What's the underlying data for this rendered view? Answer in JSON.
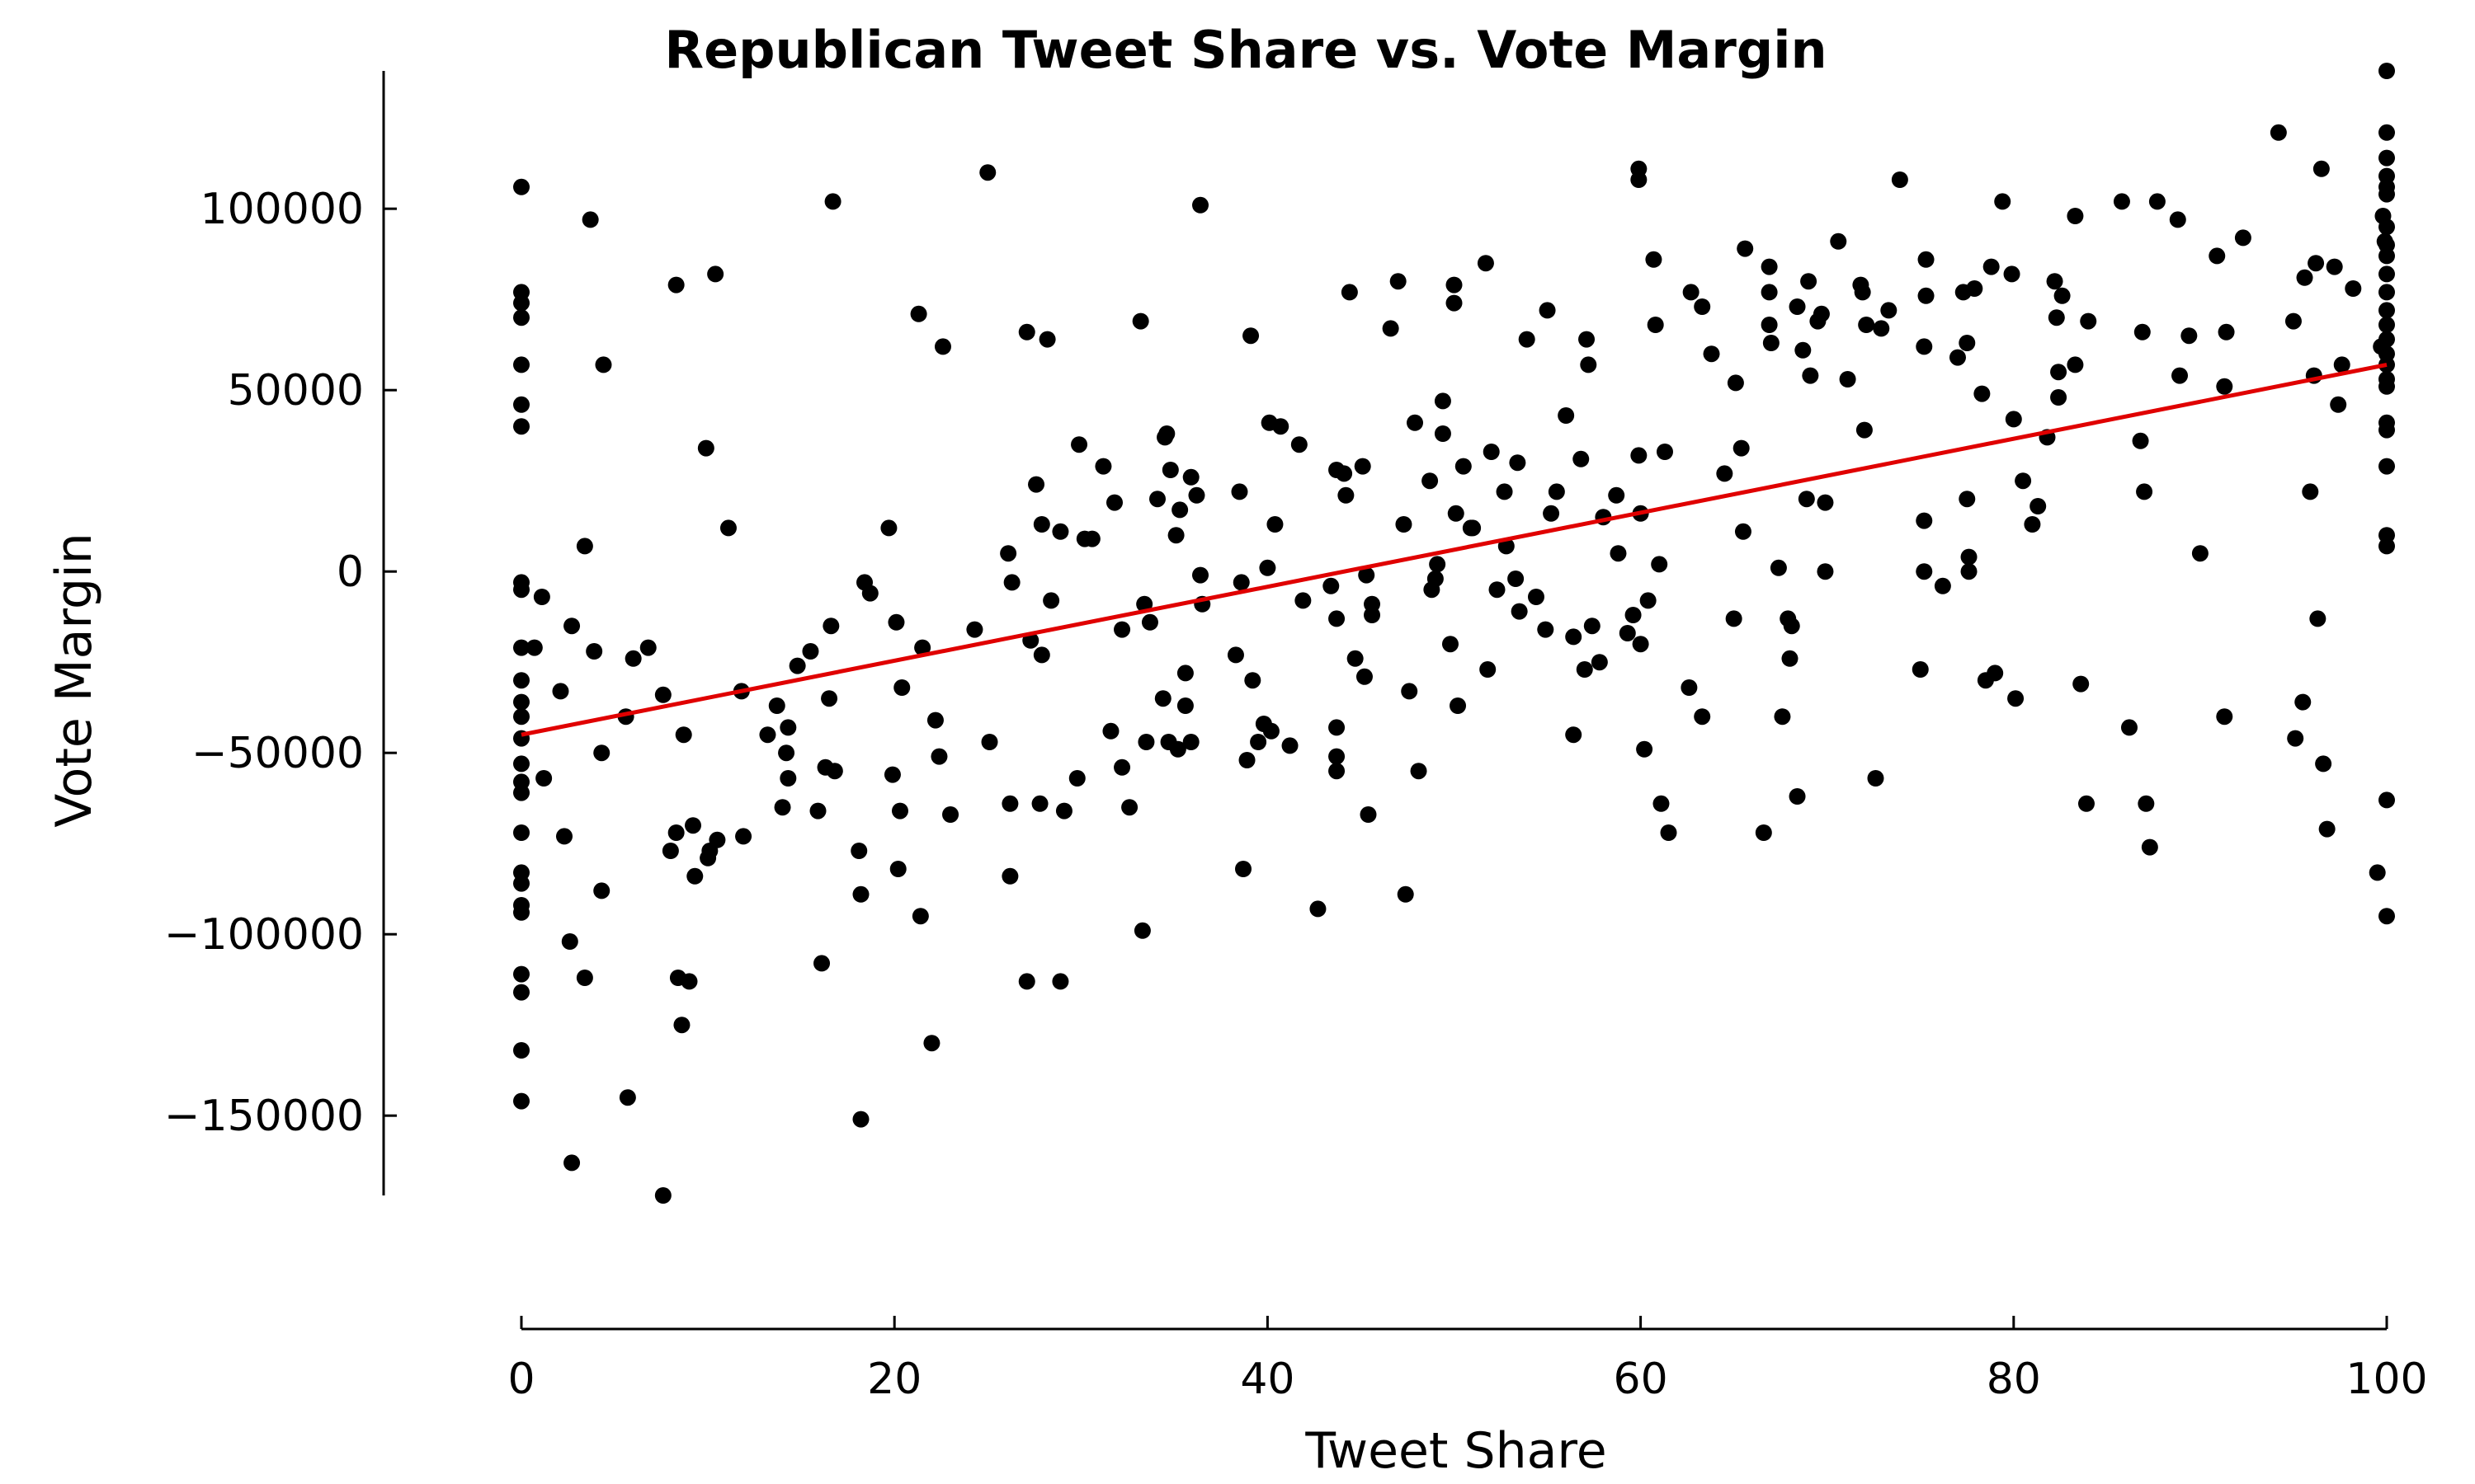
{
  "chart_data": {
    "type": "scatter",
    "title": "Republican Tweet Share vs. Vote Margin",
    "xlabel": "Tweet Share",
    "ylabel": "Vote Margin",
    "xlim": [
      0,
      100
    ],
    "ylim": [
      -172000,
      138000
    ],
    "x_ticks": [
      0,
      20,
      40,
      60,
      80,
      100
    ],
    "x_tick_labels": [
      "0",
      "20",
      "40",
      "60",
      "80",
      "100"
    ],
    "y_ticks": [
      -150000,
      -100000,
      -50000,
      0,
      50000,
      100000
    ],
    "y_tick_labels": [
      "−150000",
      "−100000",
      "−50000",
      "0",
      "50000",
      "100000"
    ],
    "grid": false,
    "legend": "none",
    "colors": {
      "points": "#000000",
      "trend_line": "#e00000"
    },
    "trend_line": {
      "x": [
        0,
        100
      ],
      "y": [
        -45000,
        57000
      ]
    },
    "points": [
      [
        0,
        106000
      ],
      [
        0,
        77000
      ],
      [
        0,
        74000
      ],
      [
        0,
        70000
      ],
      [
        0,
        57000
      ],
      [
        0,
        46000
      ],
      [
        0,
        40000
      ],
      [
        0,
        -3000
      ],
      [
        0,
        -5000
      ],
      [
        0,
        -21000
      ],
      [
        0,
        -30000
      ],
      [
        0,
        -36000
      ],
      [
        0,
        -40000
      ],
      [
        0,
        -46000
      ],
      [
        0,
        -53000
      ],
      [
        0,
        -58000
      ],
      [
        0,
        -61000
      ],
      [
        0,
        -72000
      ],
      [
        0,
        -83000
      ],
      [
        0,
        -86000
      ],
      [
        0,
        -92000
      ],
      [
        0,
        -94000
      ],
      [
        0,
        -111000
      ],
      [
        0,
        -116000
      ],
      [
        0,
        -132000
      ],
      [
        0,
        -146000
      ],
      [
        0.7,
        -21000
      ],
      [
        1.1,
        -7000
      ],
      [
        1.2,
        -57000
      ],
      [
        2.1,
        -33000
      ],
      [
        2.3,
        -73000
      ],
      [
        2.6,
        -102000
      ],
      [
        2.7,
        -15000
      ],
      [
        2.7,
        -163000
      ],
      [
        3.4,
        7000
      ],
      [
        3.4,
        -112000
      ],
      [
        3.7,
        97000
      ],
      [
        3.9,
        -22000
      ],
      [
        4.3,
        -50000
      ],
      [
        4.3,
        -88000
      ],
      [
        4.4,
        57000
      ],
      [
        5.7,
        -145000
      ],
      [
        5.6,
        -40000
      ],
      [
        6.0,
        -24000
      ],
      [
        6.8,
        -21000
      ],
      [
        7.6,
        -34000
      ],
      [
        7.6,
        -172000
      ],
      [
        8.0,
        -77000
      ],
      [
        8.3,
        79000
      ],
      [
        8.3,
        -72000
      ],
      [
        8.4,
        -112000
      ],
      [
        8.6,
        -125000
      ],
      [
        8.7,
        -45000
      ],
      [
        9.0,
        -113000
      ],
      [
        9.2,
        -70000
      ],
      [
        9.3,
        -84000
      ],
      [
        9.9,
        34000
      ],
      [
        10.0,
        -79000
      ],
      [
        10.1,
        -77000
      ],
      [
        10.4,
        82000
      ],
      [
        10.5,
        -74000
      ],
      [
        11.1,
        12000
      ],
      [
        11.8,
        -33000
      ],
      [
        11.9,
        -73000
      ],
      [
        13.2,
        -45000
      ],
      [
        13.7,
        -37000
      ],
      [
        14.0,
        -65000
      ],
      [
        14.2,
        -50000
      ],
      [
        14.3,
        -43000
      ],
      [
        14.3,
        -57000
      ],
      [
        14.8,
        -26000
      ],
      [
        15.5,
        -22000
      ],
      [
        15.9,
        -66000
      ],
      [
        16.1,
        -108000
      ],
      [
        16.3,
        -54000
      ],
      [
        16.5,
        -35000
      ],
      [
        16.6,
        -15000
      ],
      [
        16.7,
        102000
      ],
      [
        16.8,
        -55000
      ],
      [
        18.1,
        -77000
      ],
      [
        18.2,
        -89000
      ],
      [
        18.2,
        -151000
      ],
      [
        18.4,
        -3000
      ],
      [
        18.7,
        -6000
      ],
      [
        19.7,
        12000
      ],
      [
        19.9,
        -56000
      ],
      [
        20.1,
        -14000
      ],
      [
        20.2,
        -82000
      ],
      [
        20.3,
        -66000
      ],
      [
        20.4,
        -32000
      ],
      [
        21.3,
        71000
      ],
      [
        21.4,
        -95000
      ],
      [
        21.5,
        -21000
      ],
      [
        22.0,
        -130000
      ],
      [
        22.2,
        -41000
      ],
      [
        22.4,
        -51000
      ],
      [
        22.6,
        62000
      ],
      [
        23.0,
        -67000
      ],
      [
        24.3,
        -16000
      ],
      [
        25.0,
        110000
      ],
      [
        25.1,
        -47000
      ],
      [
        26.1,
        5000
      ],
      [
        26.2,
        -64000
      ],
      [
        26.2,
        -84000
      ],
      [
        26.3,
        -3000
      ],
      [
        27.1,
        66000
      ],
      [
        27.1,
        -113000
      ],
      [
        27.3,
        -19000
      ],
      [
        27.6,
        24000
      ],
      [
        27.8,
        -64000
      ],
      [
        27.9,
        13000
      ],
      [
        27.9,
        -23000
      ],
      [
        28.2,
        64000
      ],
      [
        28.4,
        -8000
      ],
      [
        28.9,
        11000
      ],
      [
        28.9,
        -113000
      ],
      [
        29.1,
        -66000
      ],
      [
        29.8,
        -57000
      ],
      [
        29.9,
        35000
      ],
      [
        30.2,
        9000
      ],
      [
        30.6,
        9000
      ],
      [
        31.2,
        29000
      ],
      [
        31.6,
        -44000
      ],
      [
        31.8,
        19000
      ],
      [
        32.2,
        -16000
      ],
      [
        32.2,
        -54000
      ],
      [
        32.6,
        -65000
      ],
      [
        33.2,
        69000
      ],
      [
        33.3,
        -99000
      ],
      [
        33.4,
        -9000
      ],
      [
        33.5,
        -47000
      ],
      [
        33.7,
        -14000
      ],
      [
        34.1,
        20000
      ],
      [
        34.4,
        -35000
      ],
      [
        34.5,
        37000
      ],
      [
        34.6,
        38000
      ],
      [
        34.7,
        -47000
      ],
      [
        34.8,
        28000
      ],
      [
        35.1,
        10000
      ],
      [
        35.2,
        -49000
      ],
      [
        35.3,
        17000
      ],
      [
        35.6,
        -28000
      ],
      [
        35.6,
        -37000
      ],
      [
        35.9,
        -47000
      ],
      [
        35.9,
        26000
      ],
      [
        36.2,
        21000
      ],
      [
        36.4,
        101000
      ],
      [
        36.4,
        -1000
      ],
      [
        36.5,
        -9000
      ],
      [
        38.3,
        -23000
      ],
      [
        38.5,
        22000
      ],
      [
        38.6,
        -3000
      ],
      [
        38.7,
        -82000
      ],
      [
        38.9,
        -52000
      ],
      [
        39.1,
        65000
      ],
      [
        39.2,
        -30000
      ],
      [
        39.5,
        -47000
      ],
      [
        39.8,
        -42000
      ],
      [
        40.1,
        41000
      ],
      [
        40.0,
        1000
      ],
      [
        40.2,
        -44000
      ],
      [
        40.4,
        13000
      ],
      [
        40.7,
        40000
      ],
      [
        41.2,
        -48000
      ],
      [
        41.7,
        35000
      ],
      [
        41.9,
        -8000
      ],
      [
        42.7,
        -93000
      ],
      [
        43.4,
        -4000
      ],
      [
        43.7,
        28000
      ],
      [
        43.7,
        -13000
      ],
      [
        43.7,
        -43000
      ],
      [
        43.7,
        -51000
      ],
      [
        43.7,
        -55000
      ],
      [
        44.1,
        27000
      ],
      [
        44.2,
        21000
      ],
      [
        44.4,
        77000
      ],
      [
        44.7,
        -24000
      ],
      [
        45.1,
        29000
      ],
      [
        45.2,
        -29000
      ],
      [
        45.3,
        -1000
      ],
      [
        45.4,
        -67000
      ],
      [
        45.6,
        -9000
      ],
      [
        45.6,
        -12000
      ],
      [
        46.6,
        67000
      ],
      [
        47.0,
        80000
      ],
      [
        47.3,
        13000
      ],
      [
        47.4,
        -89000
      ],
      [
        47.6,
        -33000
      ],
      [
        47.9,
        41000
      ],
      [
        48.1,
        -55000
      ],
      [
        48.7,
        25000
      ],
      [
        48.8,
        -5000
      ],
      [
        49.0,
        -2000
      ],
      [
        49.1,
        2000
      ],
      [
        49.4,
        47000
      ],
      [
        49.4,
        38000
      ],
      [
        49.8,
        -20000
      ],
      [
        50.0,
        79000
      ],
      [
        50.0,
        74000
      ],
      [
        50.1,
        16000
      ],
      [
        50.2,
        -37000
      ],
      [
        50.5,
        29000
      ],
      [
        50.9,
        12000
      ],
      [
        51.0,
        12000
      ],
      [
        51.7,
        85000
      ],
      [
        51.8,
        -27000
      ],
      [
        52.0,
        33000
      ],
      [
        52.3,
        -5000
      ],
      [
        52.8,
        7000
      ],
      [
        52.7,
        22000
      ],
      [
        53.3,
        -2000
      ],
      [
        53.4,
        30000
      ],
      [
        53.5,
        -11000
      ],
      [
        53.9,
        64000
      ],
      [
        54.4,
        -7000
      ],
      [
        54.9,
        -16000
      ],
      [
        55.0,
        72000
      ],
      [
        55.2,
        16000
      ],
      [
        55.5,
        22000
      ],
      [
        56.0,
        43000
      ],
      [
        56.4,
        -45000
      ],
      [
        56.4,
        -18000
      ],
      [
        56.8,
        31000
      ],
      [
        57.0,
        -27000
      ],
      [
        57.1,
        64000
      ],
      [
        57.2,
        57000
      ],
      [
        57.4,
        -15000
      ],
      [
        57.8,
        -25000
      ],
      [
        58.0,
        15000
      ],
      [
        58.7,
        21000
      ],
      [
        58.8,
        5000
      ],
      [
        59.3,
        -17000
      ],
      [
        59.6,
        -12000
      ],
      [
        59.9,
        111000
      ],
      [
        59.9,
        108000
      ],
      [
        59.9,
        32000
      ],
      [
        60.0,
        16000
      ],
      [
        60.0,
        -20000
      ],
      [
        60.2,
        -49000
      ],
      [
        60.4,
        -8000
      ],
      [
        60.7,
        86000
      ],
      [
        60.8,
        68000
      ],
      [
        61.0,
        2000
      ],
      [
        61.1,
        -64000
      ],
      [
        61.3,
        33000
      ],
      [
        61.5,
        -72000
      ],
      [
        62.6,
        -32000
      ],
      [
        62.7,
        77000
      ],
      [
        63.3,
        -40000
      ],
      [
        63.3,
        73000
      ],
      [
        63.8,
        60000
      ],
      [
        64.5,
        27000
      ],
      [
        65.0,
        -13000
      ],
      [
        65.1,
        52000
      ],
      [
        65.4,
        34000
      ],
      [
        65.5,
        11000
      ],
      [
        65.6,
        89000
      ],
      [
        66.6,
        -72000
      ],
      [
        66.9,
        84000
      ],
      [
        66.9,
        77000
      ],
      [
        66.9,
        68000
      ],
      [
        67.0,
        63000
      ],
      [
        67.4,
        1000
      ],
      [
        67.6,
        -40000
      ],
      [
        67.9,
        -13000
      ],
      [
        68.0,
        -24000
      ],
      [
        68.1,
        -15000
      ],
      [
        68.4,
        73000
      ],
      [
        68.4,
        -62000
      ],
      [
        68.7,
        61000
      ],
      [
        68.9,
        20000
      ],
      [
        69.0,
        80000
      ],
      [
        69.1,
        54000
      ],
      [
        69.5,
        69000
      ],
      [
        69.7,
        71000
      ],
      [
        69.9,
        19000
      ],
      [
        69.9,
        0
      ],
      [
        70.6,
        91000
      ],
      [
        71.1,
        53000
      ],
      [
        71.8,
        79000
      ],
      [
        71.9,
        77000
      ],
      [
        72.0,
        39000
      ],
      [
        72.1,
        68000
      ],
      [
        72.6,
        -57000
      ],
      [
        72.9,
        67000
      ],
      [
        73.3,
        72000
      ],
      [
        73.9,
        108000
      ],
      [
        75.0,
        -27000
      ],
      [
        75.2,
        14000
      ],
      [
        75.2,
        0
      ],
      [
        75.2,
        62000
      ],
      [
        75.3,
        86000
      ],
      [
        75.3,
        76000
      ],
      [
        76.2,
        -4000
      ],
      [
        77.0,
        59000
      ],
      [
        77.3,
        77000
      ],
      [
        77.5,
        63000
      ],
      [
        77.5,
        20000
      ],
      [
        77.6,
        4000
      ],
      [
        77.6,
        0
      ],
      [
        77.9,
        78000
      ],
      [
        78.3,
        49000
      ],
      [
        78.5,
        -30000
      ],
      [
        78.8,
        84000
      ],
      [
        79.0,
        -28000
      ],
      [
        79.4,
        102000
      ],
      [
        79.9,
        82000
      ],
      [
        80.0,
        42000
      ],
      [
        80.1,
        -35000
      ],
      [
        80.5,
        25000
      ],
      [
        81.0,
        13000
      ],
      [
        81.3,
        18000
      ],
      [
        81.8,
        37000
      ],
      [
        82.2,
        80000
      ],
      [
        82.3,
        70000
      ],
      [
        82.4,
        48000
      ],
      [
        82.4,
        55000
      ],
      [
        82.6,
        76000
      ],
      [
        83.3,
        98000
      ],
      [
        83.3,
        57000
      ],
      [
        83.6,
        -31000
      ],
      [
        83.9,
        -64000
      ],
      [
        84.0,
        69000
      ],
      [
        85.8,
        102000
      ],
      [
        86.2,
        -43000
      ],
      [
        86.8,
        36000
      ],
      [
        86.9,
        66000
      ],
      [
        87.0,
        22000
      ],
      [
        87.1,
        -64000
      ],
      [
        87.3,
        -76000
      ],
      [
        87.7,
        102000
      ],
      [
        88.8,
        97000
      ],
      [
        88.9,
        54000
      ],
      [
        89.4,
        65000
      ],
      [
        90.0,
        5000
      ],
      [
        90.9,
        87000
      ],
      [
        91.3,
        51000
      ],
      [
        91.3,
        -40000
      ],
      [
        91.4,
        66000
      ],
      [
        92.3,
        92000
      ],
      [
        94.2,
        121000
      ],
      [
        95.0,
        69000
      ],
      [
        95.1,
        -46000
      ],
      [
        95.5,
        -36000
      ],
      [
        95.6,
        81000
      ],
      [
        95.9,
        22000
      ],
      [
        96.1,
        54000
      ],
      [
        96.2,
        85000
      ],
      [
        96.3,
        -13000
      ],
      [
        96.5,
        111000
      ],
      [
        96.6,
        -53000
      ],
      [
        96.8,
        -71000
      ],
      [
        97.2,
        84000
      ],
      [
        97.4,
        46000
      ],
      [
        97.6,
        57000
      ],
      [
        98.2,
        78000
      ],
      [
        99.5,
        -83000
      ],
      [
        99.7,
        62000
      ],
      [
        99.8,
        98000
      ],
      [
        99.9,
        91000
      ],
      [
        100,
        138000
      ],
      [
        100,
        121000
      ],
      [
        100,
        114000
      ],
      [
        100,
        109000
      ],
      [
        100,
        106000
      ],
      [
        100,
        104000
      ],
      [
        100,
        95000
      ],
      [
        100,
        90000
      ],
      [
        100,
        87000
      ],
      [
        100,
        82000
      ],
      [
        100,
        77000
      ],
      [
        100,
        72000
      ],
      [
        100,
        68000
      ],
      [
        100,
        64000
      ],
      [
        100,
        60000
      ],
      [
        100,
        57000
      ],
      [
        100,
        53000
      ],
      [
        100,
        51000
      ],
      [
        100,
        41000
      ],
      [
        100,
        39000
      ],
      [
        100,
        29000
      ],
      [
        100,
        10000
      ],
      [
        100,
        7000
      ],
      [
        100,
        -63000
      ],
      [
        100,
        -95000
      ]
    ]
  }
}
